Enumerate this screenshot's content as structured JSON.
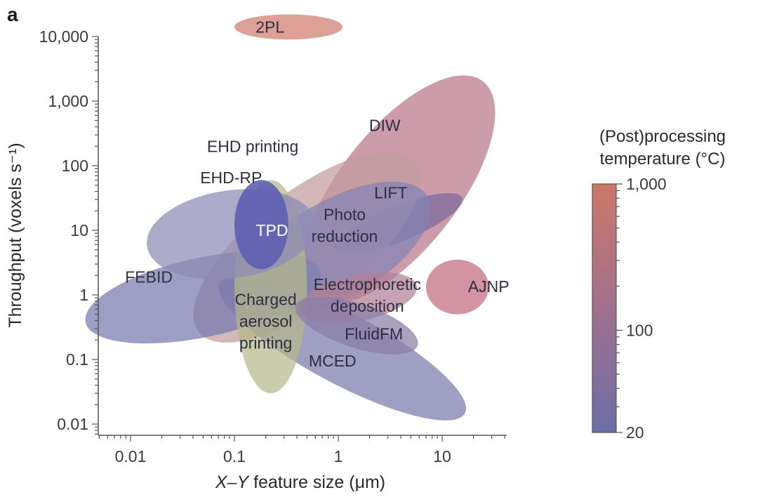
{
  "panel_label": "a",
  "chart_data": {
    "type": "scatter",
    "subtype": "log-log region (ellipse) plot",
    "xlabel_italic": "X–Y",
    "xlabel_rest": " feature size (μm)",
    "ylabel": "Throughput (voxels s⁻¹)",
    "x_scale": "log",
    "y_scale": "log",
    "xlim": [
      0.0035,
      40
    ],
    "ylim": [
      0.007,
      10000
    ],
    "x_ticks": [
      {
        "value": 0.01,
        "label": "0.01"
      },
      {
        "value": 0.1,
        "label": "0.1"
      },
      {
        "value": 1,
        "label": "1"
      },
      {
        "value": 10,
        "label": "10"
      }
    ],
    "y_ticks": [
      {
        "value": 0.01,
        "label": "0.01"
      },
      {
        "value": 0.1,
        "label": "0.1"
      },
      {
        "value": 1,
        "label": "1"
      },
      {
        "value": 10,
        "label": "10"
      },
      {
        "value": 100,
        "label": "100"
      },
      {
        "value": 1000,
        "label": "1,000"
      },
      {
        "value": 10000,
        "label": "10,000"
      }
    ],
    "grid": false,
    "colorbar": {
      "title_lines": [
        "(Post)processing",
        "temperature (°C)"
      ],
      "scale": "log",
      "range": [
        20,
        1000
      ],
      "ticks": [
        {
          "value": 1000,
          "label": "1,000"
        },
        {
          "value": 100,
          "label": "100"
        },
        {
          "value": 20,
          "label": "20"
        }
      ],
      "color_low": "#6c6ea6",
      "color_mid": "#a0708f",
      "color_high": "#cd7868",
      "placement": "right"
    },
    "regions": [
      {
        "name": "2PL",
        "x_center": 0.33,
        "y_center": 14000,
        "x_span": [
          0.1,
          1.1
        ],
        "y_span": [
          9000,
          22000
        ],
        "angle": 0,
        "color": "#cf7b6e",
        "label_pos": [
          0.22,
          14000
        ]
      },
      {
        "name": "DIW",
        "x_center": 3.5,
        "y_center": 80,
        "x_span": [
          0.45,
          32
        ],
        "y_span": [
          0.9,
          2000
        ],
        "angle": 52,
        "color": "#b8768b",
        "label_pos": [
          2.8,
          420
        ]
      },
      {
        "name": "LIFT",
        "x_center": 3.8,
        "y_center": 12,
        "x_span": [
          0.9,
          16
        ],
        "y_span": [
          4,
          40
        ],
        "angle": 22,
        "color": "#7a6a9a",
        "label_pos": [
          3.2,
          38
        ]
      },
      {
        "name": "AJNP",
        "x_center": 15,
        "y_center": 1.35,
        "x_span": [
          7,
          28
        ],
        "y_span": [
          0.5,
          3.5
        ],
        "angle": 0,
        "color": "#c06a7e",
        "label_pos": [
          28,
          1.35
        ]
      },
      {
        "name": "EHD printing",
        "x_center": 0.9,
        "y_center": 8,
        "x_span": [
          0.05,
          5
        ],
        "y_span": [
          0.15,
          200
        ],
        "angle": 38,
        "color": "#c29c9e",
        "label_pos": [
          0.15,
          200
        ]
      },
      {
        "name": "EHD-RP",
        "x_center": 0.1,
        "y_center": 12,
        "x_span": [
          0.038,
          0.23
        ],
        "y_span": [
          0.5,
          150
        ],
        "angle": 8,
        "color": "#8d8ab5",
        "label_pos": [
          0.093,
          65
        ]
      },
      {
        "name": "TPD",
        "x_center": 0.21,
        "y_center": 10,
        "x_span": [
          0.1,
          0.33
        ],
        "y_span": [
          2.5,
          60
        ],
        "angle": 0,
        "color": "#5d5fb2",
        "label_pos": [
          0.23,
          10
        ]
      },
      {
        "name": "Photo reduction",
        "label_lines": [
          "Photo",
          "reduction"
        ],
        "x_center": 0.9,
        "y_center": 4,
        "x_span": [
          0.22,
          4.2
        ],
        "y_span": [
          0.22,
          120
        ],
        "angle": 30,
        "color": "#8484b5",
        "label_pos": [
          1.15,
          12
        ]
      },
      {
        "name": "FEBID",
        "x_center": 0.045,
        "y_center": 1.7,
        "x_span": [
          0.005,
          0.5
        ],
        "y_span": [
          0.07,
          12
        ],
        "angle": 12,
        "color": "#7778ac",
        "label_pos": [
          0.015,
          1.9
        ]
      },
      {
        "name": "Electrophoretic deposition",
        "label_lines": [
          "Electrophoretic",
          "deposition"
        ],
        "x_center": 1.8,
        "y_center": 1.0,
        "x_span": [
          0.55,
          4.4
        ],
        "y_span": [
          0.2,
          4
        ],
        "angle": 12,
        "color": "#b07f96",
        "label_pos": [
          1.9,
          1
        ]
      },
      {
        "name": "Charged aerosol printing",
        "label_lines": [
          "Charged",
          "aerosol",
          "printing"
        ],
        "x_center": 0.21,
        "y_center": 1.0,
        "x_span": [
          0.1,
          0.5
        ],
        "y_span": [
          0.03,
          60
        ],
        "angle": 0,
        "color": "#b6b98a",
        "label_pos": [
          0.2,
          0.4
        ]
      },
      {
        "name": "MCED",
        "x_center": 1.8,
        "y_center": 0.2,
        "x_span": [
          0.06,
          20
        ],
        "y_span": [
          0.015,
          1.5
        ],
        "angle": -28,
        "color": "#7a7aac",
        "label_pos": [
          0.88,
          0.095
        ]
      },
      {
        "name": "FluidFM",
        "x_center": 1.6,
        "y_center": 0.3,
        "x_span": [
          0.45,
          5
        ],
        "y_span": [
          0.08,
          1.4
        ],
        "angle": -18,
        "color": "#8a7ea8",
        "label_pos": [
          2.2,
          0.25
        ]
      }
    ]
  }
}
